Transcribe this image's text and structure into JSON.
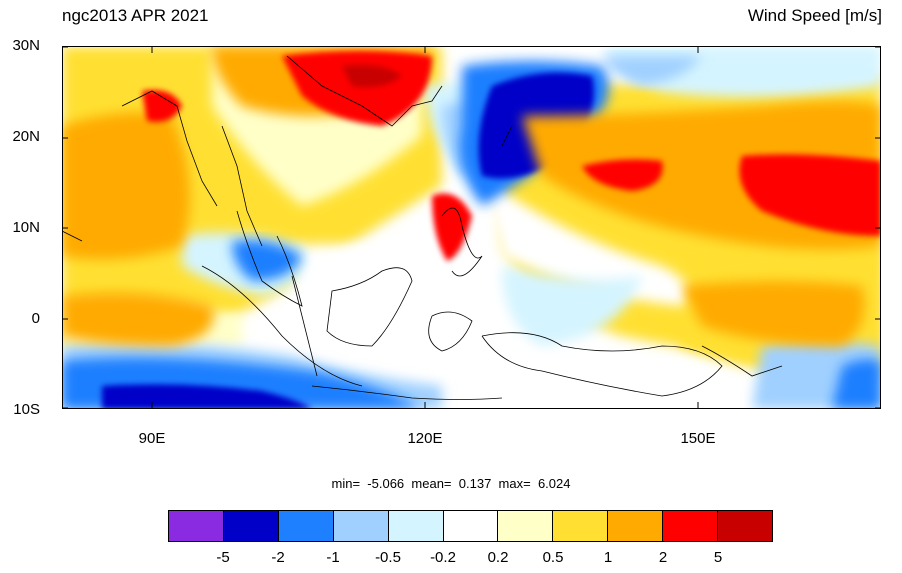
{
  "header": {
    "title_left": "ngc2013 APR 2021",
    "title_right": "Wind Speed [m/s]"
  },
  "map": {
    "lat_ticks": [
      "30N",
      "20N",
      "10N",
      "0",
      "10S"
    ],
    "lon_ticks": [
      "90E",
      "120E",
      "150E"
    ],
    "lat_range": [
      -10,
      30
    ],
    "lon_range": [
      81,
      171
    ]
  },
  "stats": {
    "min_label": "min=",
    "min_value": "-5.066",
    "mean_label": "mean=",
    "mean_value": "0.137",
    "max_label": "max=",
    "max_value": "6.024"
  },
  "colorbar": {
    "colors": [
      "#8a2be2",
      "#0000c8",
      "#1e7fff",
      "#a0d0ff",
      "#d4f4ff",
      "#ffffff",
      "#ffffc8",
      "#ffe032",
      "#ffaa00",
      "#ff0000",
      "#c80000"
    ],
    "labels": [
      "-5",
      "-2",
      "-1",
      "-0.5",
      "-0.2",
      "0.2",
      "0.5",
      "1",
      "2",
      "5"
    ]
  }
}
